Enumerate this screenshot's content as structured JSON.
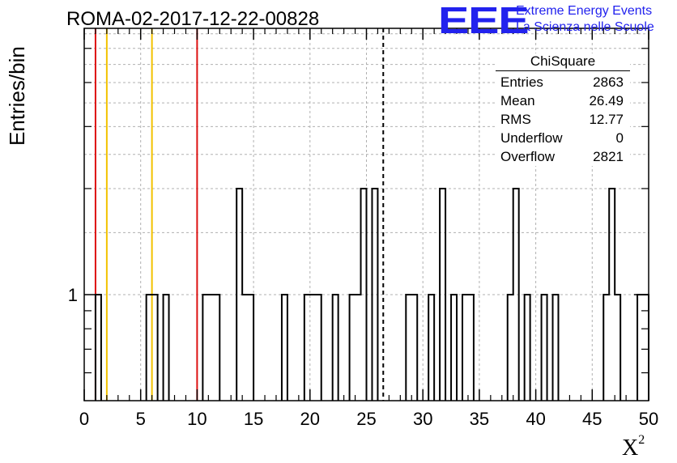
{
  "title": "ROMA-02-2017-12-22-00828",
  "logo": {
    "mark": "EEE",
    "line1": "Extreme Energy Events",
    "line2": "La Scienza nelle Scuole",
    "color": "#2222ee"
  },
  "stats": {
    "title": "ChiSquare",
    "rows": [
      {
        "label": "Entries",
        "value": "2863"
      },
      {
        "label": "Mean",
        "value": "26.49"
      },
      {
        "label": "RMS",
        "value": "12.77"
      },
      {
        "label": "Underflow",
        "value": "0"
      },
      {
        "label": "Overflow",
        "value": "2821"
      }
    ]
  },
  "chart_data": {
    "type": "histogram",
    "title": "ROMA-02-2017-12-22-00828",
    "xlabel": "X",
    "xlabel_superscript": "2",
    "ylabel": "Entries/bin",
    "xlim": [
      0,
      50
    ],
    "y_scale": "log",
    "ylim": [
      0.5,
      5.7
    ],
    "bin_width": 0.5,
    "x_ticks": [
      0,
      5,
      10,
      15,
      20,
      25,
      30,
      35,
      40,
      45,
      50
    ],
    "y_tick_labels": [
      {
        "value": 1,
        "label": "1"
      }
    ],
    "grid": true,
    "bins": [
      {
        "x": 1.0,
        "count": 1
      },
      {
        "x": 5.5,
        "count": 1
      },
      {
        "x": 6.0,
        "count": 1
      },
      {
        "x": 7.0,
        "count": 1
      },
      {
        "x": 10.5,
        "count": 1
      },
      {
        "x": 11.0,
        "count": 1
      },
      {
        "x": 11.5,
        "count": 1
      },
      {
        "x": 13.5,
        "count": 2
      },
      {
        "x": 14.0,
        "count": 1
      },
      {
        "x": 14.5,
        "count": 1
      },
      {
        "x": 17.5,
        "count": 1
      },
      {
        "x": 19.5,
        "count": 1
      },
      {
        "x": 20.0,
        "count": 1
      },
      {
        "x": 20.5,
        "count": 1
      },
      {
        "x": 22.0,
        "count": 1
      },
      {
        "x": 23.5,
        "count": 1
      },
      {
        "x": 24.0,
        "count": 1
      },
      {
        "x": 24.5,
        "count": 2
      },
      {
        "x": 25.5,
        "count": 2
      },
      {
        "x": 28.5,
        "count": 1
      },
      {
        "x": 29.0,
        "count": 1
      },
      {
        "x": 30.5,
        "count": 1
      },
      {
        "x": 31.5,
        "count": 2
      },
      {
        "x": 32.5,
        "count": 1
      },
      {
        "x": 33.5,
        "count": 1
      },
      {
        "x": 34.0,
        "count": 1
      },
      {
        "x": 37.5,
        "count": 1
      },
      {
        "x": 38.0,
        "count": 2
      },
      {
        "x": 39.0,
        "count": 1
      },
      {
        "x": 40.5,
        "count": 1
      },
      {
        "x": 41.5,
        "count": 1
      },
      {
        "x": 46.0,
        "count": 1
      },
      {
        "x": 46.5,
        "count": 2
      },
      {
        "x": 47.0,
        "count": 1
      },
      {
        "x": 49.0,
        "count": 1
      },
      {
        "x": 49.5,
        "count": 1
      }
    ],
    "vertical_lines": [
      {
        "x": 1.0,
        "color": "#dd1111",
        "style": "solid"
      },
      {
        "x": 2.0,
        "color": "#f2c200",
        "style": "solid"
      },
      {
        "x": 6.0,
        "color": "#f2c200",
        "style": "solid"
      },
      {
        "x": 10.0,
        "color": "#dd1111",
        "style": "solid"
      },
      {
        "x": 26.49,
        "color": "#000000",
        "style": "dashed"
      }
    ]
  }
}
